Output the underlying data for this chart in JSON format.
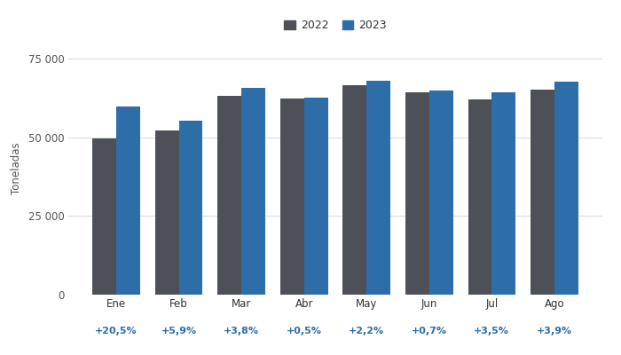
{
  "months": [
    "Ene",
    "Feb",
    "Mar",
    "Abr",
    "May",
    "Jun",
    "Jul",
    "Ago"
  ],
  "variations": [
    "+20,5%",
    "+5,9%",
    "+3,8%",
    "+0,5%",
    "+2,2%",
    "+0,7%",
    "+3,5%",
    "+3,9%"
  ],
  "values_2022": [
    49500,
    52200,
    63200,
    62300,
    66400,
    64200,
    62100,
    65100
  ],
  "values_2023": [
    59700,
    55300,
    65600,
    62600,
    67870,
    64650,
    64280,
    67640
  ],
  "color_2022": "#4d5057",
  "color_2023": "#2d6da8",
  "ylabel": "Toneladas",
  "ylim": [
    0,
    80000
  ],
  "yticks": [
    0,
    25000,
    50000,
    75000
  ],
  "ytick_labels": [
    "0",
    "25 000",
    "50 000",
    "75 000"
  ],
  "legend_2022": "2022",
  "legend_2023": "2023",
  "variation_color": "#2d6da8",
  "bg_color": "#ffffff",
  "plot_bg_color": "#ffffff",
  "bar_width": 0.38,
  "grid_color": "#d8d8d8",
  "legend_square_color_2022": "#555555",
  "legend_square_color_2023": "#2d6da8"
}
